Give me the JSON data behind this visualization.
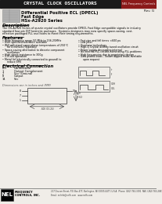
{
  "title_bar_text": "CRYSTAL CLOCK OSCILLATORS",
  "title_bar_bg": "#1a1a1a",
  "title_bar_color": "#ffffff",
  "red_box_bg": "#8b1a1a",
  "red_box_text": "NEL Frequency Controls",
  "rev_text": "Rev. G",
  "product_line1": "Differential Positive ECL (DPECL)",
  "product_line2": "Fast Edge",
  "product_line3": "HSx-A2920 Series",
  "desc_title": "Description",
  "desc_body1": "The HS-A2920 Series of quartz crystal oscillators provide DPECL Fast Edge compatible signals in industry",
  "desc_body2": "standard four-pin DIP hermetic packages.  Systems designers may now specify space-saving, cost-",
  "desc_body3": "effective packaged PLL oscillators to meet their timing requirements.",
  "feat_title": "Features",
  "feat_left": [
    "Wide frequency range-50 MHz to 156.25MHz",
    "User specified tolerance available",
    "Will withstand vapor phase temperatures of 250°C",
    "   for 4 minutes (typically)",
    "Space-saving alternative to discrete component",
    "   oscillators",
    "High shock resistance to 300g",
    "3.3 volt operation",
    "Metal lid (electrically connected to ground) to",
    "   reduce EMI"
  ],
  "feat_right": [
    "Fast rise and fall times <600 ps",
    "Low Jitter",
    "Overtone technology",
    "High-Q Crystal activity tuned oscillation circuit",
    "Power supply decoupling internal",
    "No internal PLL circuits eliminating PLL problems",
    "High frequencies due to proprietary design",
    "Gold plated leads - Solder dipped leads available",
    "   upon request"
  ],
  "feat_left_bullets": [
    0,
    1,
    2,
    4,
    6,
    7,
    8
  ],
  "feat_right_bullets": [
    0,
    1,
    2,
    3,
    4,
    5,
    6,
    7
  ],
  "elec_title": "Electrical Connection",
  "pin_col1": "Pin",
  "pin_col2": "Connection",
  "pins": [
    [
      "1",
      "Output Complement"
    ],
    [
      "7",
      "Vcc (Ground)"
    ],
    [
      "8",
      "Output"
    ],
    [
      "14",
      "Vcc"
    ]
  ],
  "dim_note": "Dimensions are in inches and (MM)",
  "footer_bg": "#000000",
  "footer_nel": "NEL",
  "footer_freq": "FREQUENCY",
  "footer_ctrl": "CONTROLS, INC.",
  "footer_addr1": "217 Devcon Street, P.O. Box 477, Burlington, WI 53105-0477, U.S.A.  Phone: (262) 763-3591  FAX: (262) 763-2881",
  "footer_addr2": "Email: nelinfo@nelfc.com   www.nelfc.com",
  "page_bg": "#f0ede8"
}
